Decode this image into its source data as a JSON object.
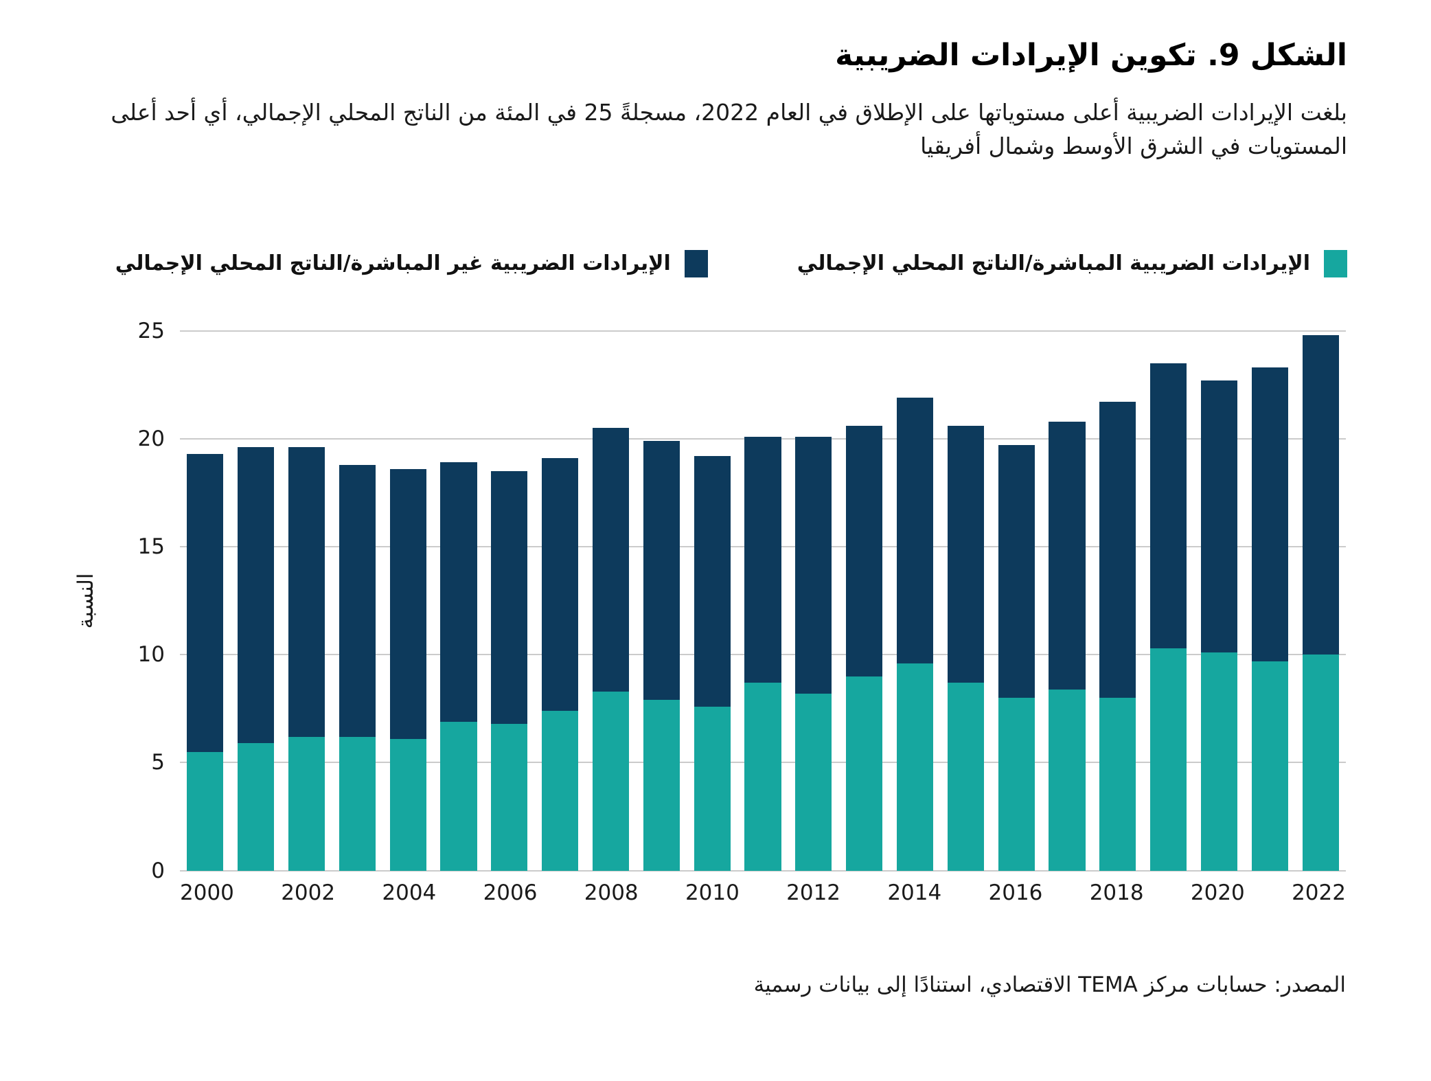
{
  "page": {
    "title": "الشكل 9. تكوين الإيرادات الضريبية",
    "subtitle": "بلغت الإيرادات الضريبية أعلى مستوياتها على الإطلاق في العام 2022، مسجلةً 25 في المئة من الناتج المحلي الإجمالي، أي أحد أعلى المستويات في الشرق الأوسط وشمال أفريقيا",
    "source": "المصدر: حسابات مركز TEMA الاقتصادي، استنادًا إلى بيانات رسمية"
  },
  "colors": {
    "direct_teal": "#16A79F",
    "indirect_navy": "#0D3A5C",
    "gridline": "#CBCBCB",
    "text": "#1A1A1A"
  },
  "legend": [
    {
      "key": "direct",
      "label": "الإيرادات الضريبية المباشرة/الناتج المحلي الإجمالي",
      "color": "#16A79F"
    },
    {
      "key": "indirect",
      "label": "الإيرادات الضريبية غير المباشرة/الناتج المحلي الإجمالي",
      "color": "#0D3A5C"
    }
  ],
  "chart_data": {
    "type": "bar",
    "stacked": true,
    "title": "الشكل 9. تكوين الإيرادات الضريبية",
    "ylabel": "النسبة",
    "xlabel": "",
    "ylim": [
      0,
      25
    ],
    "yticks": [
      0,
      5,
      10,
      15,
      20,
      25
    ],
    "grid": true,
    "legend_position": "top",
    "categories": [
      "2000",
      "2001",
      "2002",
      "2003",
      "2004",
      "2005",
      "2006",
      "2007",
      "2008",
      "2009",
      "2010",
      "2011",
      "2012",
      "2013",
      "2014",
      "2015",
      "2016",
      "2017",
      "2018",
      "2019",
      "2020",
      "2021",
      "2022"
    ],
    "xtick_labels": [
      "2000",
      "2002",
      "2004",
      "2006",
      "2008",
      "2010",
      "2012",
      "2014",
      "2016",
      "2018",
      "2020",
      "2022"
    ],
    "series": [
      {
        "name": "الإيرادات الضريبية المباشرة/الناتج المحلي الإجمالي",
        "key": "direct",
        "color": "#16A79F",
        "values": [
          5.5,
          5.9,
          6.2,
          6.2,
          6.1,
          6.9,
          6.8,
          7.4,
          8.3,
          7.9,
          7.6,
          8.7,
          8.2,
          9.0,
          9.6,
          8.7,
          8.0,
          8.4,
          8.0,
          10.3,
          10.1,
          9.7,
          10.0
        ]
      },
      {
        "name": "الإيرادات الضريبية غير المباشرة/الناتج المحلي الإجمالي",
        "key": "indirect",
        "color": "#0D3A5C",
        "values": [
          13.8,
          13.7,
          13.4,
          12.6,
          12.5,
          12.0,
          11.7,
          11.7,
          12.2,
          12.0,
          11.6,
          11.4,
          11.9,
          11.6,
          12.3,
          11.9,
          11.7,
          12.4,
          13.7,
          13.2,
          12.6,
          13.6,
          14.8
        ]
      }
    ],
    "totals": [
      19.3,
      19.6,
      19.6,
      18.8,
      18.6,
      18.9,
      18.5,
      19.1,
      20.5,
      19.9,
      19.2,
      20.1,
      20.1,
      20.6,
      21.9,
      20.6,
      19.7,
      20.8,
      21.7,
      23.5,
      22.7,
      23.3,
      24.8
    ]
  }
}
